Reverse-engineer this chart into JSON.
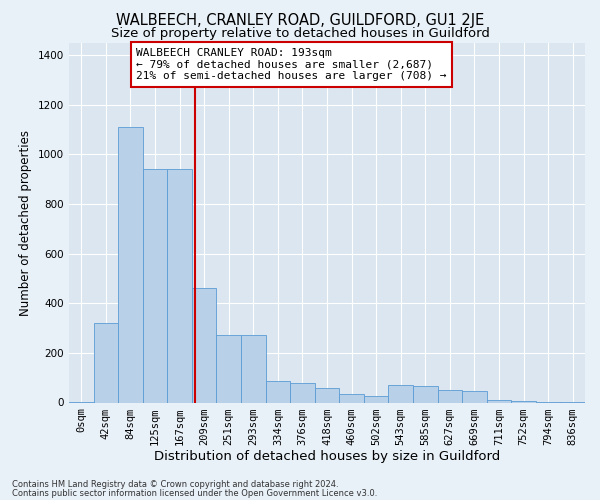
{
  "title": "WALBEECH, CRANLEY ROAD, GUILDFORD, GU1 2JE",
  "subtitle": "Size of property relative to detached houses in Guildford",
  "xlabel": "Distribution of detached houses by size in Guildford",
  "ylabel": "Number of detached properties",
  "footnote1": "Contains HM Land Registry data © Crown copyright and database right 2024.",
  "footnote2": "Contains public sector information licensed under the Open Government Licence v3.0.",
  "categories": [
    "0sqm",
    "42sqm",
    "84sqm",
    "125sqm",
    "167sqm",
    "209sqm",
    "251sqm",
    "293sqm",
    "334sqm",
    "376sqm",
    "418sqm",
    "460sqm",
    "502sqm",
    "543sqm",
    "585sqm",
    "627sqm",
    "669sqm",
    "711sqm",
    "752sqm",
    "794sqm",
    "836sqm"
  ],
  "values": [
    2,
    320,
    1110,
    940,
    940,
    460,
    270,
    270,
    85,
    80,
    60,
    35,
    25,
    70,
    65,
    50,
    45,
    10,
    5,
    2,
    2
  ],
  "bar_color": "#b8d0e8",
  "bar_edge_color": "#5b9bd5",
  "vline_color": "#cc0000",
  "annotation_text": "WALBEECH CRANLEY ROAD: 193sqm\n← 79% of detached houses are smaller (2,687)\n21% of semi-detached houses are larger (708) →",
  "annotation_box_color": "#ffffff",
  "annotation_box_edge_color": "#cc0000",
  "ylim": [
    0,
    1450
  ],
  "yticks": [
    0,
    200,
    400,
    600,
    800,
    1000,
    1200,
    1400
  ],
  "background_color": "#dce6f0",
  "grid_color": "#ffffff",
  "fig_background_color": "#e8f0f8",
  "title_fontsize": 10.5,
  "subtitle_fontsize": 9.5,
  "ylabel_fontsize": 8.5,
  "xlabel_fontsize": 9.5,
  "tick_fontsize": 7.5,
  "annotation_fontsize": 8,
  "footnote_fontsize": 6
}
